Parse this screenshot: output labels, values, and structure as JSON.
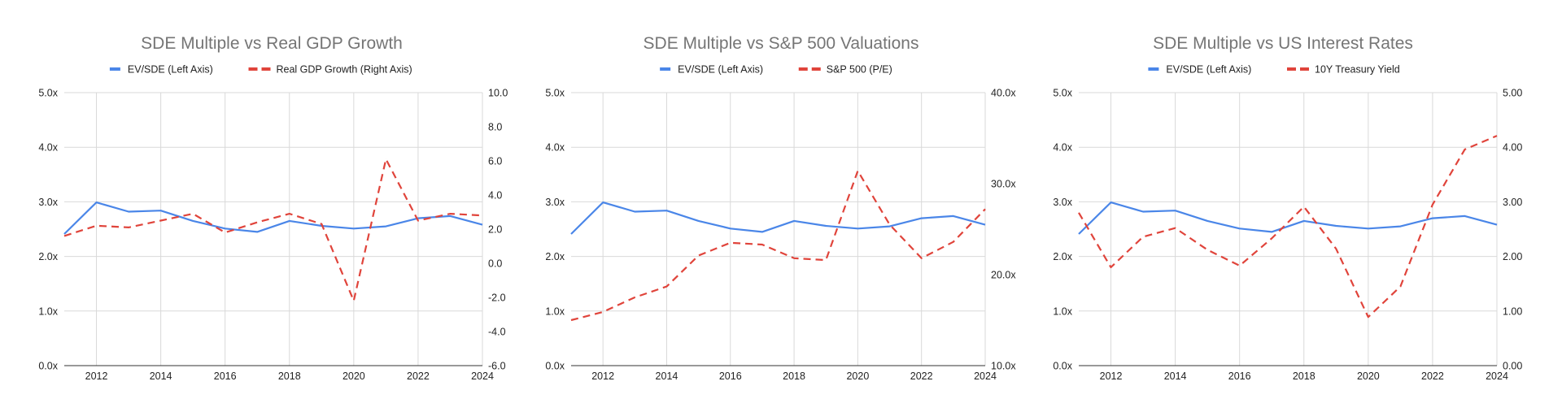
{
  "chart_data": [
    {
      "type": "line",
      "title": "SDE Multiple vs Real GDP Growth",
      "x": [
        2011,
        2012,
        2013,
        2014,
        2015,
        2016,
        2017,
        2018,
        2019,
        2020,
        2021,
        2022,
        2023,
        2024
      ],
      "x_ticks": [
        "2012",
        "2014",
        "2016",
        "2018",
        "2020",
        "2022",
        "2024"
      ],
      "left_axis": {
        "range": [
          0,
          5
        ],
        "ticks": [
          "0.0x",
          "1.0x",
          "2.0x",
          "3.0x",
          "4.0x",
          "5.0x"
        ]
      },
      "right_axis": {
        "range": [
          -6,
          10
        ],
        "ticks": [
          "-6.0",
          "-4.0",
          "-2.0",
          "0.0",
          "2.0",
          "4.0",
          "6.0",
          "8.0",
          "10.0"
        ]
      },
      "grid": true,
      "legend_position": "top",
      "series": [
        {
          "name": "EV/SDE (Left Axis)",
          "axis": "left",
          "style": "solid",
          "color": "#4a86e8",
          "values": [
            2.41,
            2.99,
            2.82,
            2.84,
            2.65,
            2.51,
            2.45,
            2.65,
            2.56,
            2.51,
            2.55,
            2.7,
            2.74,
            2.58
          ]
        },
        {
          "name": "Real GDP Growth (Right Axis)",
          "axis": "right",
          "style": "dashed",
          "color": "#e0443b",
          "values": [
            1.6,
            2.2,
            2.1,
            2.5,
            2.9,
            1.8,
            2.4,
            2.9,
            2.3,
            -2.2,
            6.1,
            2.5,
            2.9,
            2.8
          ]
        }
      ]
    },
    {
      "type": "line",
      "title": "SDE Multiple vs S&P 500 Valuations",
      "x": [
        2011,
        2012,
        2013,
        2014,
        2015,
        2016,
        2017,
        2018,
        2019,
        2020,
        2021,
        2022,
        2023,
        2024
      ],
      "x_ticks": [
        "2012",
        "2014",
        "2016",
        "2018",
        "2020",
        "2022",
        "2024"
      ],
      "left_axis": {
        "range": [
          0,
          5
        ],
        "ticks": [
          "0.0x",
          "1.0x",
          "2.0x",
          "3.0x",
          "4.0x",
          "5.0x"
        ]
      },
      "right_axis": {
        "range": [
          10,
          40
        ],
        "ticks": [
          "10.0x",
          "20.0x",
          "30.0x",
          "40.0x"
        ]
      },
      "grid": true,
      "legend_position": "top",
      "series": [
        {
          "name": "EV/SDE (Left Axis)",
          "axis": "left",
          "style": "solid",
          "color": "#4a86e8",
          "values": [
            2.41,
            2.99,
            2.82,
            2.84,
            2.65,
            2.51,
            2.45,
            2.65,
            2.56,
            2.51,
            2.55,
            2.7,
            2.74,
            2.58
          ]
        },
        {
          "name": "S&P 500 (P/E)",
          "axis": "right",
          "style": "dashed",
          "color": "#e0443b",
          "values": [
            15.0,
            15.9,
            17.5,
            18.7,
            22.1,
            23.5,
            23.3,
            21.8,
            21.6,
            31.4,
            25.5,
            21.8,
            23.6,
            27.2
          ]
        }
      ]
    },
    {
      "type": "line",
      "title": "SDE Multiple vs US Interest Rates",
      "x": [
        2011,
        2012,
        2013,
        2014,
        2015,
        2016,
        2017,
        2018,
        2019,
        2020,
        2021,
        2022,
        2023,
        2024
      ],
      "x_ticks": [
        "2012",
        "2014",
        "2016",
        "2018",
        "2020",
        "2022",
        "2024"
      ],
      "left_axis": {
        "range": [
          0,
          5
        ],
        "ticks": [
          "0.0x",
          "1.0x",
          "2.0x",
          "3.0x",
          "4.0x",
          "5.0x"
        ]
      },
      "right_axis": {
        "range": [
          0,
          5
        ],
        "ticks": [
          "0.00",
          "1.00",
          "2.00",
          "3.00",
          "4.00",
          "5.00"
        ]
      },
      "grid": true,
      "legend_position": "top",
      "series": [
        {
          "name": "EV/SDE (Left Axis)",
          "axis": "left",
          "style": "solid",
          "color": "#4a86e8",
          "values": [
            2.41,
            2.99,
            2.82,
            2.84,
            2.65,
            2.51,
            2.45,
            2.65,
            2.56,
            2.51,
            2.55,
            2.7,
            2.74,
            2.58
          ]
        },
        {
          "name": "10Y Treasury Yield",
          "axis": "right",
          "style": "dashed",
          "color": "#e0443b",
          "values": [
            2.8,
            1.8,
            2.36,
            2.52,
            2.12,
            1.83,
            2.33,
            2.91,
            2.14,
            0.89,
            1.45,
            2.95,
            3.96,
            4.21
          ]
        }
      ]
    }
  ]
}
